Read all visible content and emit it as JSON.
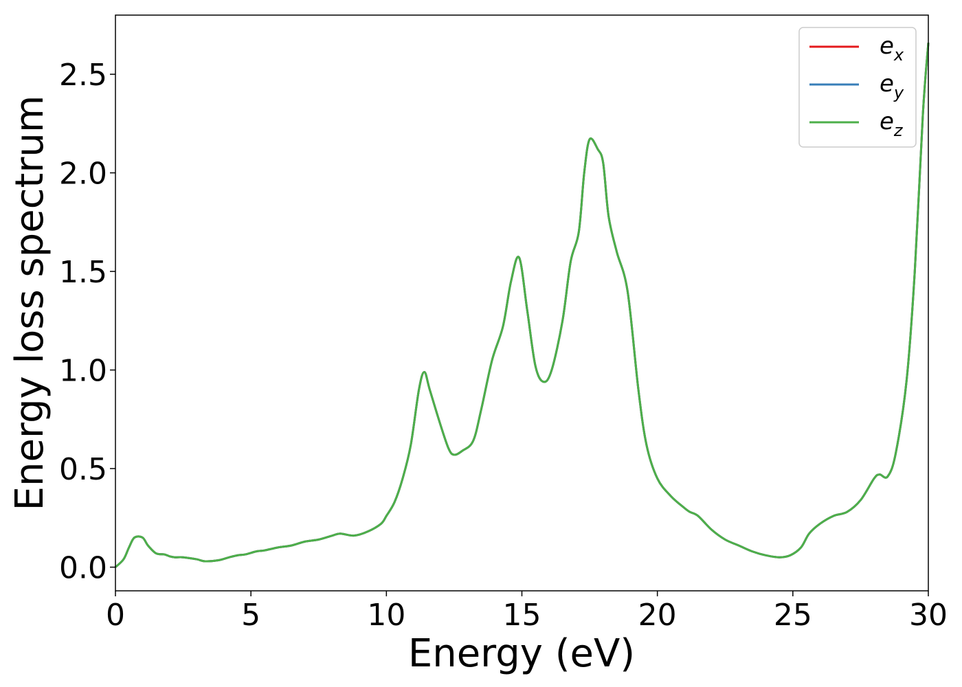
{
  "chart_data": {
    "type": "line",
    "xlabel": "Energy (eV)",
    "ylabel": "Energy loss spectrum",
    "xlim": [
      0,
      30
    ],
    "ylim": [
      -0.12,
      2.8
    ],
    "xticks": [
      0,
      5,
      10,
      15,
      20,
      25,
      30
    ],
    "xtick_labels": [
      "0",
      "5",
      "10",
      "15",
      "20",
      "25",
      "30"
    ],
    "yticks": [
      0.0,
      0.5,
      1.0,
      1.5,
      2.0,
      2.5
    ],
    "ytick_labels": [
      "0.0",
      "0.5",
      "1.0",
      "1.5",
      "2.0",
      "2.5"
    ],
    "grid": false,
    "legend_position": "top-right",
    "series": [
      {
        "name": "e_x",
        "legend_base": "e",
        "legend_sub": "x",
        "color": "#e41a1c"
      },
      {
        "name": "e_y",
        "legend_base": "e",
        "legend_sub": "y",
        "color": "#377eb8"
      },
      {
        "name": "e_z",
        "legend_base": "e",
        "legend_sub": "z",
        "color": "#4daf4a"
      }
    ],
    "x": [
      0,
      0.3,
      0.5,
      0.7,
      1.0,
      1.2,
      1.5,
      1.8,
      2.0,
      2.2,
      2.5,
      3.0,
      3.3,
      3.8,
      4.2,
      4.5,
      4.8,
      5.2,
      5.5,
      6.0,
      6.5,
      7.0,
      7.5,
      8.0,
      8.3,
      8.8,
      9.3,
      9.8,
      10.0,
      10.3,
      10.6,
      10.9,
      11.2,
      11.4,
      11.6,
      12.0,
      12.3,
      12.5,
      12.8,
      13.2,
      13.5,
      13.9,
      14.3,
      14.6,
      14.9,
      15.2,
      15.5,
      15.8,
      16.1,
      16.5,
      16.8,
      17.1,
      17.3,
      17.5,
      17.8,
      18.0,
      18.2,
      18.5,
      18.9,
      19.3,
      19.6,
      20.0,
      20.5,
      21.0,
      21.2,
      21.5,
      22.0,
      22.5,
      23.0,
      23.5,
      24.0,
      24.5,
      24.9,
      25.3,
      25.6,
      26.0,
      26.5,
      27.0,
      27.5,
      28.0,
      28.2,
      28.5,
      28.8,
      29.2,
      29.5,
      29.8,
      30.0
    ],
    "values": [
      [
        0.0,
        0.04,
        0.1,
        0.15,
        0.15,
        0.11,
        0.07,
        0.065,
        0.055,
        0.05,
        0.05,
        0.04,
        0.03,
        0.035,
        0.05,
        0.06,
        0.065,
        0.08,
        0.085,
        0.1,
        0.11,
        0.13,
        0.14,
        0.16,
        0.17,
        0.16,
        0.18,
        0.22,
        0.26,
        0.33,
        0.45,
        0.62,
        0.9,
        0.99,
        0.9,
        0.72,
        0.6,
        0.57,
        0.59,
        0.64,
        0.8,
        1.05,
        1.22,
        1.45,
        1.57,
        1.3,
        1.02,
        0.94,
        1.0,
        1.25,
        1.55,
        1.7,
        2.0,
        2.17,
        2.12,
        2.05,
        1.78,
        1.6,
        1.4,
        0.9,
        0.62,
        0.45,
        0.36,
        0.3,
        0.28,
        0.26,
        0.19,
        0.14,
        0.11,
        0.08,
        0.06,
        0.05,
        0.06,
        0.1,
        0.17,
        0.22,
        0.26,
        0.28,
        0.34,
        0.45,
        0.47,
        0.46,
        0.58,
        0.95,
        1.5,
        2.3,
        2.66
      ],
      [
        0.0,
        0.04,
        0.1,
        0.15,
        0.15,
        0.11,
        0.07,
        0.065,
        0.055,
        0.05,
        0.05,
        0.04,
        0.03,
        0.035,
        0.05,
        0.06,
        0.065,
        0.08,
        0.085,
        0.1,
        0.11,
        0.13,
        0.14,
        0.16,
        0.17,
        0.16,
        0.18,
        0.22,
        0.26,
        0.33,
        0.45,
        0.62,
        0.9,
        0.99,
        0.9,
        0.72,
        0.6,
        0.57,
        0.59,
        0.64,
        0.8,
        1.05,
        1.22,
        1.45,
        1.57,
        1.3,
        1.02,
        0.94,
        1.0,
        1.25,
        1.55,
        1.7,
        2.0,
        2.17,
        2.12,
        2.05,
        1.78,
        1.6,
        1.4,
        0.9,
        0.62,
        0.45,
        0.36,
        0.3,
        0.28,
        0.26,
        0.19,
        0.14,
        0.11,
        0.08,
        0.06,
        0.05,
        0.06,
        0.1,
        0.17,
        0.22,
        0.26,
        0.28,
        0.34,
        0.45,
        0.47,
        0.46,
        0.58,
        0.95,
        1.5,
        2.3,
        2.66
      ],
      [
        0.0,
        0.04,
        0.1,
        0.15,
        0.15,
        0.11,
        0.07,
        0.065,
        0.055,
        0.05,
        0.05,
        0.04,
        0.03,
        0.035,
        0.05,
        0.06,
        0.065,
        0.08,
        0.085,
        0.1,
        0.11,
        0.13,
        0.14,
        0.16,
        0.17,
        0.16,
        0.18,
        0.22,
        0.26,
        0.33,
        0.45,
        0.62,
        0.9,
        0.99,
        0.9,
        0.72,
        0.6,
        0.57,
        0.59,
        0.64,
        0.8,
        1.05,
        1.22,
        1.45,
        1.57,
        1.3,
        1.02,
        0.94,
        1.0,
        1.25,
        1.55,
        1.7,
        2.0,
        2.17,
        2.12,
        2.05,
        1.78,
        1.6,
        1.4,
        0.9,
        0.62,
        0.45,
        0.36,
        0.3,
        0.28,
        0.26,
        0.19,
        0.14,
        0.11,
        0.08,
        0.06,
        0.05,
        0.06,
        0.1,
        0.17,
        0.22,
        0.26,
        0.28,
        0.34,
        0.45,
        0.47,
        0.46,
        0.58,
        0.95,
        1.5,
        2.3,
        2.66
      ]
    ]
  }
}
